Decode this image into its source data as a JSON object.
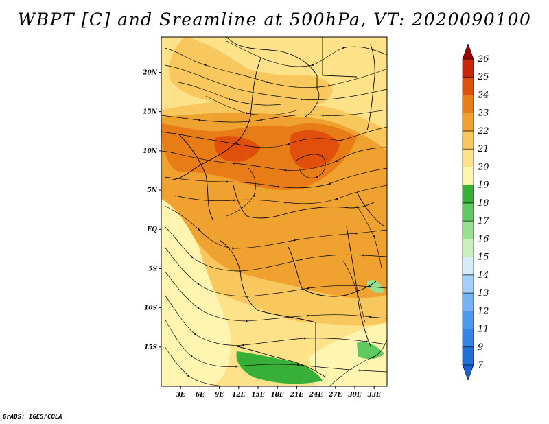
{
  "title": "WBPT [C] and Sreamline at 500hPa, VT: 2020090100",
  "credit": "GrADS: IGES/COLA",
  "map": {
    "lat_labels": [
      "20N",
      "15N",
      "10N",
      "5N",
      "EQ",
      "5S",
      "10S",
      "15S"
    ],
    "lat_values": [
      20,
      15,
      10,
      5,
      0,
      -5,
      -10,
      -15
    ],
    "lon_labels": [
      "3E",
      "6E",
      "9E",
      "12E",
      "15E",
      "18E",
      "21E",
      "24E",
      "27E",
      "30E",
      "33E"
    ],
    "lon_values": [
      3,
      6,
      9,
      12,
      15,
      18,
      21,
      24,
      27,
      30,
      33
    ],
    "lon_range": [
      0,
      35
    ],
    "lat_range": [
      -20,
      24.5
    ]
  },
  "colorbar": {
    "labels": [
      "7",
      "9",
      "11",
      "12",
      "13",
      "14",
      "15",
      "16",
      "17",
      "18",
      "19",
      "20",
      "21",
      "22",
      "23",
      "24",
      "25",
      "26"
    ],
    "colors": [
      "#2070d8",
      "#3585e6",
      "#4a9af0",
      "#72b4f5",
      "#a3cff9",
      "#d5edfb",
      "#c8f0c0",
      "#96e090",
      "#60c860",
      "#38b038",
      "#fff4b0",
      "#fde28a",
      "#f8c85e",
      "#f0a230",
      "#e87c16",
      "#e0500c",
      "#c82606",
      "#a80a04"
    ],
    "low_color": "#1a60d0",
    "high_color": "#a00000"
  }
}
